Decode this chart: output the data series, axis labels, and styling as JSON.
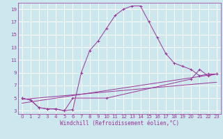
{
  "xlabel": "Windchill (Refroidissement éolien,°C)",
  "ylabel": "",
  "bg_color": "#cce8ee",
  "line_color": "#993399",
  "grid_color": "#ffffff",
  "xlim": [
    -0.5,
    23.5
  ],
  "ylim": [
    2.5,
    20
  ],
  "xticks": [
    0,
    1,
    2,
    3,
    4,
    5,
    6,
    7,
    8,
    9,
    10,
    11,
    12,
    13,
    14,
    15,
    16,
    17,
    18,
    19,
    20,
    21,
    22,
    23
  ],
  "yticks": [
    3,
    5,
    7,
    9,
    11,
    13,
    15,
    17,
    19
  ],
  "line1_x": [
    0,
    1,
    2,
    3,
    4,
    5,
    6,
    7,
    8,
    9,
    10,
    11,
    12,
    13,
    14,
    15,
    16,
    17,
    18,
    19,
    20,
    21,
    22,
    23
  ],
  "line1_y": [
    5,
    4.7,
    3.5,
    3.3,
    3.3,
    3.0,
    3.2,
    9.0,
    12.5,
    14.0,
    16.0,
    18.0,
    19.0,
    19.5,
    19.5,
    17.0,
    14.5,
    12.0,
    10.5,
    10.0,
    9.5,
    8.5,
    8.8,
    8.8
  ],
  "line2_x": [
    0,
    1,
    2,
    3,
    4,
    5,
    6,
    10,
    20,
    21,
    22,
    23
  ],
  "line2_y": [
    5,
    4.7,
    3.5,
    3.3,
    3.3,
    3.0,
    5.0,
    5.0,
    8.0,
    9.5,
    8.5,
    8.8
  ],
  "line3_x": [
    0,
    23
  ],
  "line3_y": [
    4.2,
    8.8
  ],
  "line4_x": [
    0,
    23
  ],
  "line4_y": [
    4.8,
    7.5
  ],
  "tick_fontsize": 5.0,
  "xlabel_fontsize": 5.5
}
